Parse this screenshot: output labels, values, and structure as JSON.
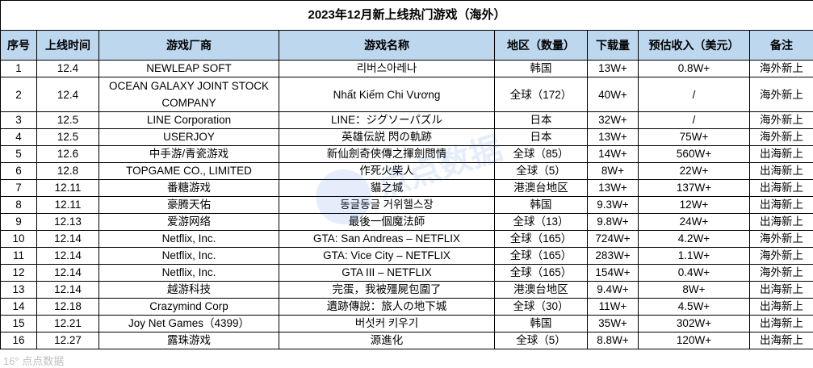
{
  "title": "2023年12月新上线热门游戏（海外）",
  "headers": [
    "序号",
    "上线时间",
    "游戏厂商",
    "游戏名称",
    "地区（数量）",
    "下载量",
    "预估收入（美元）",
    "备注"
  ],
  "rows": [
    [
      "1",
      "12.4",
      "NEWLEAP SOFT",
      "리버스아레나",
      "韩国",
      "13W+",
      "0.8W+",
      "海外新上"
    ],
    [
      "2",
      "12.4",
      "OCEAN GALAXY JOINT STOCK COMPANY",
      "Nhất Kiếm Chi Vương",
      "全球（172）",
      "40W+",
      "/",
      "海外新上"
    ],
    [
      "3",
      "12.5",
      "LINE Corporation",
      "LINE：ジグソーパズル",
      "日本",
      "32W+",
      "/",
      "海外新上"
    ],
    [
      "4",
      "12.5",
      "USERJOY",
      "英雄伝説 閃の軌跡",
      "日本",
      "13W+",
      "75W+",
      "海外新上"
    ],
    [
      "5",
      "12.6",
      "中手游/青瓷游戏",
      "新仙劍奇俠傳之揮劍問情",
      "全球（85）",
      "14W+",
      "560W+",
      "出海新上"
    ],
    [
      "6",
      "12.8",
      "TOPGAME CO., LIMITED",
      "作死火柴人",
      "全球（5）",
      "8W+",
      "22W+",
      "出海新上"
    ],
    [
      "7",
      "12.11",
      "番糖游戏",
      "貓之城",
      "港澳台地区",
      "13W+",
      "137W+",
      "出海新上"
    ],
    [
      "8",
      "12.11",
      "豪腾天佑",
      "동글동글 거위헬스장",
      "韩国",
      "9.3W+",
      "12W+",
      "出海新上"
    ],
    [
      "9",
      "12.13",
      "爱游网络",
      "最後一個魔法師",
      "全球（13）",
      "9.8W+",
      "24W+",
      "出海新上"
    ],
    [
      "10",
      "12.14",
      "Netflix, Inc.",
      "GTA: San Andreas – NETFLIX",
      "全球（165）",
      "724W+",
      "4.2W+",
      "海外新上"
    ],
    [
      "11",
      "12.14",
      "Netflix, Inc.",
      "GTA: Vice City – NETFLIX",
      "全球（165）",
      "283W+",
      "1.1W+",
      "海外新上"
    ],
    [
      "12",
      "12.14",
      "Netflix, Inc.",
      "GTA III – NETFLIX",
      "全球（165）",
      "154W+",
      "0.4W+",
      "海外新上"
    ],
    [
      "13",
      "12.14",
      "越游科技",
      "完蛋，我被殭屍包圍了",
      "港澳台地区",
      "9.4W+",
      "8W+",
      "出海新上"
    ],
    [
      "14",
      "12.18",
      "Crazymind Corp",
      "遺跡傳說：旅人の地下城",
      "全球（30）",
      "11W+",
      "4.5W+",
      "出海新上"
    ],
    [
      "15",
      "12.21",
      "Joy Net Games（4399）",
      "버섯커 키우기",
      "韩国",
      "35W+",
      "302W+",
      "出海新上"
    ],
    [
      "16",
      "12.27",
      "露珠游戏",
      "源進化",
      "全球（5）",
      "8.8W+",
      "120W+",
      "出海新上"
    ]
  ],
  "watermark": {
    "text": "点点数据",
    "corner_text": "16° 点点数据"
  },
  "colors": {
    "header_bg": "#bdd7ee",
    "border": "#000000"
  }
}
